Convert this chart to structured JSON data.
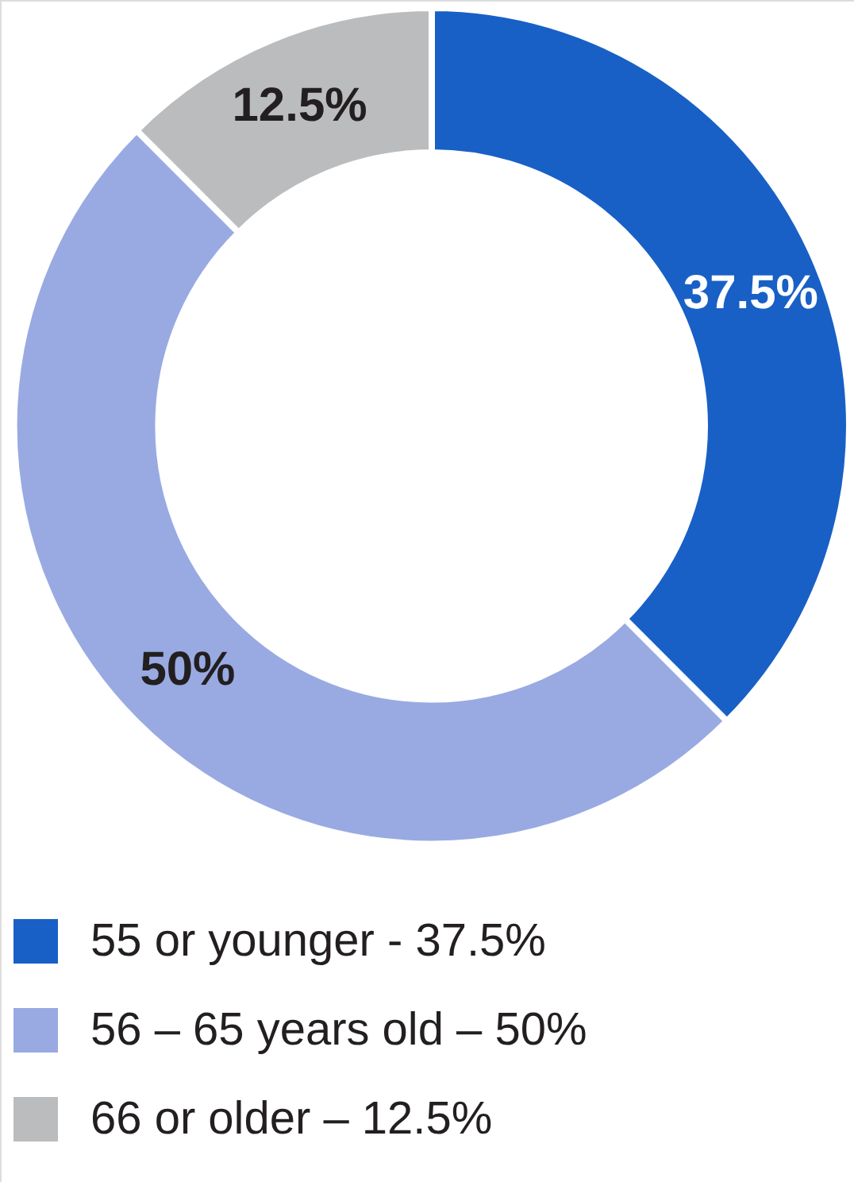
{
  "chart_data": {
    "type": "donut",
    "categories": [
      "55 or younger - 37.5%",
      "56 – 65 years old – 50%",
      "66 or older – 12.5%"
    ],
    "values": [
      37.5,
      50,
      12.5
    ],
    "colors": [
      "#1860c6",
      "#99aae2",
      "#bbbcbe"
    ],
    "value_labels": [
      "37.5%",
      "50%",
      "12.5%"
    ],
    "legend": "bottom"
  }
}
